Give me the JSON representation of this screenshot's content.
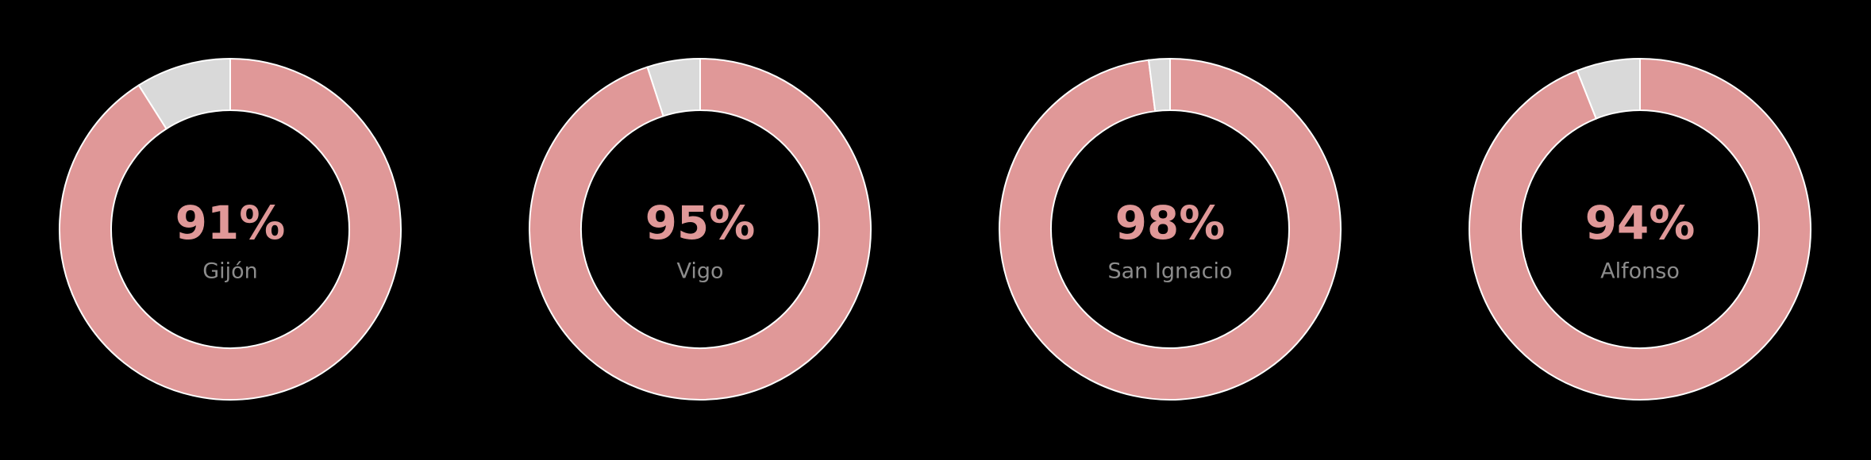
{
  "chart_data": [
    {
      "type": "donut",
      "label": "Gijón",
      "values": [
        91,
        9
      ],
      "value_labels": [
        "91%",
        null
      ],
      "colors": [
        "#e09898",
        "#d9d9d9"
      ]
    },
    {
      "type": "donut",
      "label": "Vigo",
      "values": [
        95,
        5
      ],
      "value_labels": [
        "95%",
        null
      ],
      "colors": [
        "#e09898",
        "#d9d9d9"
      ]
    },
    {
      "type": "donut",
      "label": "San Ignacio",
      "values": [
        98,
        2
      ],
      "value_labels": [
        "98%",
        null
      ],
      "colors": [
        "#e09898",
        "#d9d9d9"
      ]
    },
    {
      "type": "donut",
      "label": "Alfonso",
      "values": [
        94,
        6
      ],
      "value_labels": [
        "94%",
        null
      ],
      "colors": [
        "#e09898",
        "#d9d9d9"
      ]
    }
  ]
}
